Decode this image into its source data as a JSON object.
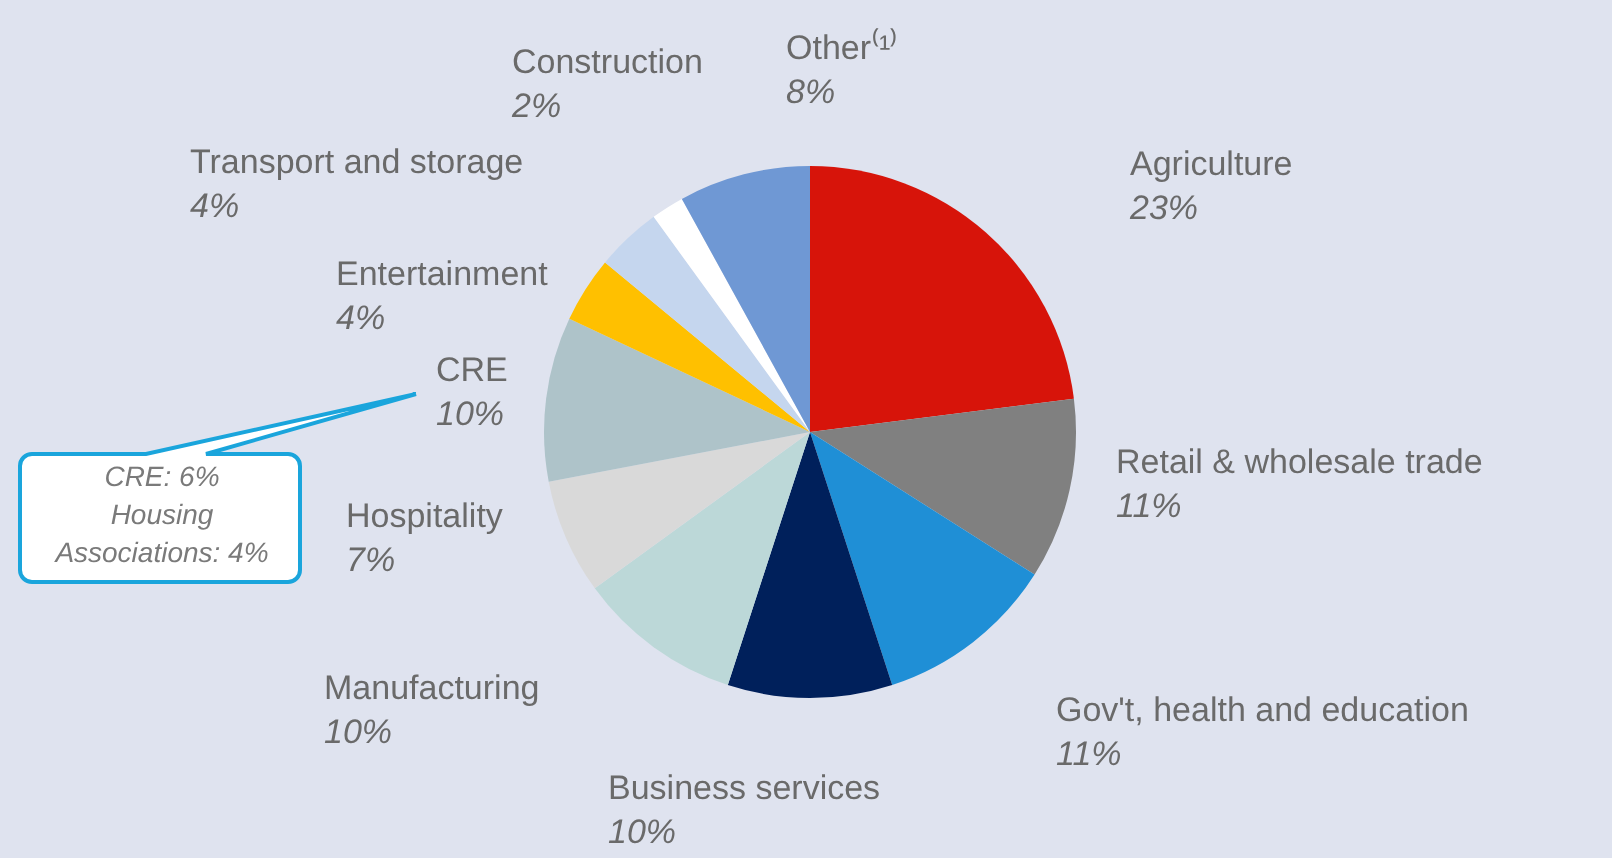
{
  "chart_data": {
    "type": "pie",
    "categories": [
      "Agriculture",
      "Retail & wholesale trade",
      "Gov't, health and education",
      "Business services",
      "Manufacturing",
      "Hospitality",
      "CRE",
      "Entertainment",
      "Transport and storage",
      "Construction",
      "Other⁽¹⁾"
    ],
    "values": [
      23,
      11,
      11,
      10,
      10,
      7,
      10,
      4,
      4,
      2,
      8
    ],
    "value_labels": [
      "23%",
      "11%",
      "11%",
      "10%",
      "10%",
      "7%",
      "10%",
      "4%",
      "4%",
      "2%",
      "8%"
    ],
    "colors": [
      "#d7140a",
      "#808080",
      "#1f8fd6",
      "#00205b",
      "#bcd8d8",
      "#d9d9d9",
      "#aec3c9",
      "#ffc000",
      "#c5d6ee",
      "#ffffff",
      "#6f98d4"
    ],
    "legend": false,
    "annotations": [
      "CRE: 6%\nHousing\nAssociations: 4%"
    ]
  }
}
